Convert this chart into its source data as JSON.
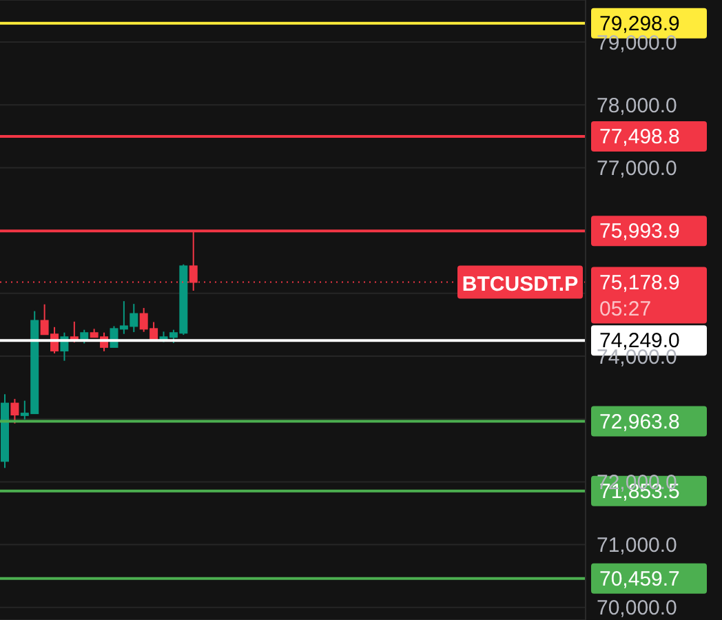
{
  "chart_data": {
    "type": "candlestick",
    "categories": [
      null,
      null,
      null,
      null,
      null,
      null,
      null,
      null,
      null,
      null,
      null,
      null,
      null,
      null,
      null,
      null,
      null,
      null,
      null,
      null,
      null,
      null,
      null,
      null,
      null,
      null,
      null,
      null,
      null,
      null,
      null,
      null,
      null,
      null,
      null,
      null,
      null,
      null,
      null,
      null,
      null,
      null,
      null,
      null,
      null,
      null,
      null,
      null,
      null,
      null,
      null,
      null,
      null,
      null,
      null,
      null,
      null,
      null,
      null
    ],
    "ohlc": [
      [
        72330,
        73393,
        72221,
        73248
      ],
      [
        73248,
        73319,
        72929,
        73068
      ],
      [
        73059,
        73291,
        72994,
        73089
      ],
      [
        73089,
        74717,
        73089,
        74565
      ],
      [
        74565,
        74825,
        74348,
        74348
      ],
      [
        74348,
        74463,
        74044,
        74087
      ],
      [
        74087,
        74376,
        73927,
        74304
      ],
      [
        74304,
        74550,
        74218,
        74261
      ],
      [
        74261,
        74420,
        74203,
        74370
      ],
      [
        74370,
        74435,
        74304,
        74304
      ],
      [
        74304,
        74376,
        74078,
        74144
      ],
      [
        74144,
        74478,
        74144,
        74435
      ],
      [
        74435,
        74876,
        74354,
        74478
      ],
      [
        74478,
        74832,
        74383,
        74674
      ],
      [
        74674,
        74767,
        74387,
        74435
      ],
      [
        74435,
        74543,
        74261,
        74261
      ],
      [
        74261,
        74391,
        74224,
        74304
      ],
      [
        74304,
        74420,
        74210,
        74370
      ],
      [
        74370,
        75461,
        74339,
        75433
      ],
      [
        75433,
        75994,
        75042,
        75178.9
      ],
      null,
      null,
      null,
      null,
      null,
      null,
      null,
      null,
      null,
      null,
      null,
      null,
      null,
      null,
      null,
      null,
      null,
      null,
      null,
      null,
      null,
      null,
      null,
      null,
      null,
      null,
      null,
      null,
      null,
      null,
      null,
      null,
      null,
      null,
      null,
      null,
      null,
      null,
      null
    ],
    "ylim": [
      69800,
      79670
    ],
    "yticks": [
      {
        "value": 70000,
        "label": "70,000.0"
      },
      {
        "value": 71000,
        "label": "71,000.0"
      },
      {
        "value": 72000,
        "label": "72,000.0"
      },
      {
        "value": 73000,
        "label": null
      },
      {
        "value": 74000,
        "label": "74,000.0"
      },
      {
        "value": 75000,
        "label": null
      },
      {
        "value": 76000,
        "label": null
      },
      {
        "value": 77000,
        "label": "77,000.0"
      },
      {
        "value": 78000,
        "label": "78,000.0"
      },
      {
        "value": 79000,
        "label": "79,000.0"
      }
    ],
    "tick_labels": "y",
    "grid": "y",
    "colors": [
      "#089981",
      "#f23645",
      "#089981",
      "#089981",
      "#f23645",
      "#f23645",
      "#089981",
      "#f23645",
      "#089981",
      "#f23645",
      "#f23645",
      "#089981",
      "#089981",
      "#089981",
      "#f23645",
      "#f23645",
      "#089981",
      "#089981",
      "#089981",
      "#f23645",
      null,
      null,
      null,
      null,
      null,
      null,
      null,
      null,
      null,
      null,
      null,
      null,
      null,
      null,
      null,
      null,
      null,
      null,
      null,
      null,
      null,
      null,
      null,
      null,
      null,
      null,
      null,
      null,
      null,
      null,
      null,
      null,
      null,
      null,
      null,
      null,
      null,
      null,
      null
    ],
    "ref_lines": [
      {
        "axis": "y",
        "value": 79298.9,
        "label": "79,298.9",
        "color": "#ffeb3b"
      },
      {
        "axis": "y",
        "value": 77498.8,
        "label": "77,498.8",
        "color": "#f23645"
      },
      {
        "axis": "y",
        "value": 75993.9,
        "label": "75,993.9",
        "color": "#f23645"
      },
      {
        "axis": "y",
        "value": 75178.9,
        "label": "75,178.9\n05:27",
        "color": "#f23645",
        "line_style": "dotted"
      },
      {
        "axis": "y",
        "value": 74249.0,
        "label": "74,249.0",
        "color": "#ffffff"
      },
      {
        "axis": "y",
        "value": 72963.8,
        "label": "72,963.8",
        "color": "#4caf50"
      },
      {
        "axis": "y",
        "value": 71853.5,
        "label": "71,853.5",
        "color": "#4caf50"
      },
      {
        "axis": "y",
        "value": 70459.7,
        "label": "70,459.7",
        "color": "#4caf50"
      }
    ],
    "annotations": [
      {
        "text": "BTCUSDT.P",
        "y": 75178.9
      }
    ]
  }
}
